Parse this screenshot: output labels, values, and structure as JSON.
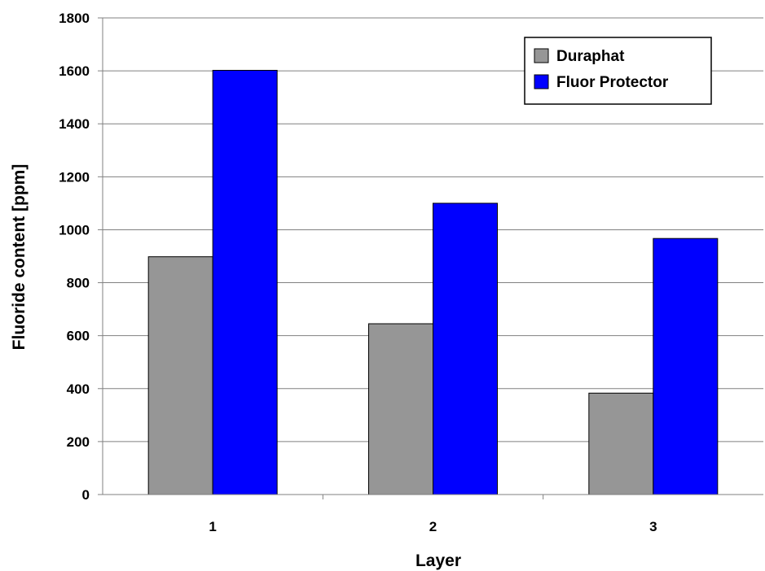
{
  "chart_data": {
    "type": "bar",
    "categories": [
      "1",
      "2",
      "3"
    ],
    "series": [
      {
        "name": "Duraphat",
        "values": [
          898,
          645,
          383
        ],
        "color": "#969696"
      },
      {
        "name": "Fluor Protector",
        "values": [
          1602,
          1100,
          967
        ],
        "color": "#0000ff"
      }
    ],
    "xlabel": "Layer",
    "ylabel": "Fluoride content [ppm]",
    "ylim": [
      0,
      1800
    ],
    "yticks": [
      0,
      200,
      400,
      600,
      800,
      1000,
      1200,
      1400,
      1600,
      1800
    ],
    "grid": true,
    "legend_position": "top-right"
  }
}
